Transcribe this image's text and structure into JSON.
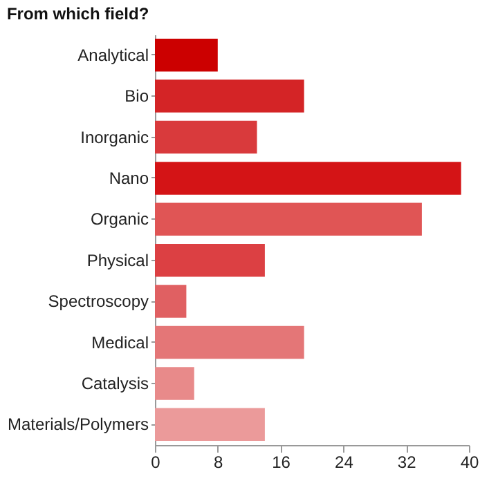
{
  "chart_data": {
    "type": "bar",
    "orientation": "horizontal",
    "title": "From which field?",
    "categories": [
      "Analytical",
      "Bio",
      "Inorganic",
      "Nano",
      "Organic",
      "Physical",
      "Spectroscopy",
      "Medical",
      "Catalysis",
      "Materials/Polymers"
    ],
    "values": [
      8,
      19,
      13,
      39,
      34,
      14,
      4,
      19,
      5,
      14
    ],
    "colors": [
      "#cc0000",
      "#d42426",
      "#d93a3c",
      "#d41416",
      "#e05555",
      "#dc4043",
      "#e06062",
      "#e47677",
      "#e88a8a",
      "#eb9a9a"
    ],
    "xlim": [
      0,
      40
    ],
    "xticks": [
      0,
      8,
      16,
      24,
      32,
      40
    ],
    "grid": false
  }
}
